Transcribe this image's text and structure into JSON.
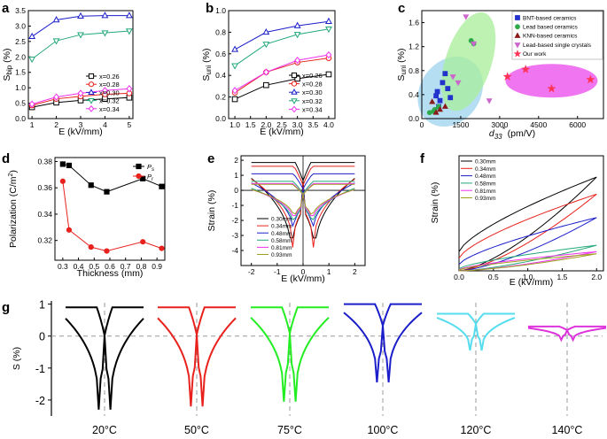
{
  "colors": {
    "black": "#000000",
    "red": "#e8211c",
    "blue": "#1b1ec9",
    "green": "#23a879",
    "magenta": "#ee30ee",
    "cyan": "#55ddee",
    "olive": "#a0a020"
  },
  "panels": {
    "a": "a",
    "b": "b",
    "c": "c",
    "d": "d",
    "e": "e",
    "f": "f",
    "g": "g"
  },
  "chart_data": [
    {
      "id": "a",
      "type": "line",
      "title": "",
      "xlabel": "E (kV/mm)",
      "ylabel": "S_bip (%)",
      "ylabel_main": "S",
      "ylabel_sub": "bip",
      "ylabel_unit": " (%)",
      "xlim": [
        1,
        5
      ],
      "ylim": [
        0,
        3.5
      ],
      "xticks": [
        "1",
        "2",
        "3",
        "4",
        "5"
      ],
      "yticks": [
        "0.0",
        "0.5",
        "1.0",
        "1.5",
        "2.0",
        "2.5",
        "3.0",
        "3.5"
      ],
      "x": [
        1,
        2,
        3,
        4,
        5
      ],
      "series": [
        {
          "name": "x=0.26",
          "color": "#000000",
          "marker": "square",
          "values": [
            0.37,
            0.52,
            0.59,
            0.64,
            0.68
          ]
        },
        {
          "name": "x=0.28",
          "color": "#e8211c",
          "marker": "circle",
          "values": [
            0.43,
            0.64,
            0.72,
            0.79,
            0.82
          ]
        },
        {
          "name": "x=0.30",
          "color": "#1b1ec9",
          "marker": "triangle",
          "values": [
            2.66,
            3.2,
            3.32,
            3.34,
            3.34
          ]
        },
        {
          "name": "x=0.32",
          "color": "#23a879",
          "marker": "triangle-down",
          "values": [
            1.93,
            2.52,
            2.72,
            2.78,
            2.84
          ]
        },
        {
          "name": "x=0.34",
          "color": "#ee30ee",
          "marker": "diamond",
          "values": [
            0.47,
            0.7,
            0.82,
            0.91,
            0.97
          ]
        }
      ]
    },
    {
      "id": "b",
      "type": "line",
      "title": "",
      "xlabel": "E (kV/mm)",
      "ylabel": "S_uni (%)",
      "ylabel_main": "S",
      "ylabel_sub": "uni",
      "ylabel_unit": " (%)",
      "xlim": [
        0.8,
        4.2
      ],
      "ylim": [
        0,
        1.0
      ],
      "xticks": [
        "1.0",
        "1.5",
        "2.0",
        "2.5",
        "3.0",
        "3.5",
        "4.0"
      ],
      "yticks": [
        "0.0",
        "0.2",
        "0.4",
        "0.6",
        "0.8",
        "1.0"
      ],
      "x": [
        1,
        2,
        3,
        4
      ],
      "series": [
        {
          "name": "x=0.26",
          "color": "#000000",
          "marker": "square",
          "values": [
            0.18,
            0.31,
            0.37,
            0.41
          ]
        },
        {
          "name": "x=0.28",
          "color": "#e8211c",
          "marker": "circle",
          "values": [
            0.24,
            0.43,
            0.52,
            0.56
          ]
        },
        {
          "name": "x=0.30",
          "color": "#1b1ec9",
          "marker": "triangle",
          "values": [
            0.64,
            0.8,
            0.86,
            0.9
          ]
        },
        {
          "name": "x=0.32",
          "color": "#23a879",
          "marker": "triangle-down",
          "values": [
            0.49,
            0.69,
            0.78,
            0.83
          ]
        },
        {
          "name": "x=0.34",
          "color": "#ee30ee",
          "marker": "diamond",
          "values": [
            0.26,
            0.43,
            0.54,
            0.59
          ]
        }
      ]
    },
    {
      "id": "c",
      "type": "scatter",
      "title": "",
      "xlabel": "d33* (pm/V)",
      "xlabel_main": "d",
      "xlabel_sub": "33",
      "xlabel_sup": "*",
      "xlabel_unit": " (pm/V)",
      "ylabel": "S_uni (%)",
      "ylabel_main": "S",
      "ylabel_sub": "uni",
      "ylabel_unit": " (%)",
      "xlim": [
        0,
        7000
      ],
      "ylim": [
        0,
        1.8
      ],
      "xticks": [
        "0",
        "1500",
        "3000",
        "4500",
        "6000"
      ],
      "yticks": [
        "0.0",
        "0.4",
        "0.8",
        "1.2",
        "1.6"
      ],
      "series": [
        {
          "name": "BNT-based ceramics",
          "color": "#2233cc",
          "marker": "square",
          "points": [
            [
              550,
              0.38
            ],
            [
              600,
              0.45
            ],
            [
              700,
              0.3
            ],
            [
              800,
              0.6
            ],
            [
              900,
              0.75
            ],
            [
              1000,
              0.5
            ],
            [
              1100,
              0.35
            ],
            [
              650,
              0.2
            ]
          ]
        },
        {
          "name": "Lead based ceramics",
          "color": "#2eaa4a",
          "marker": "circle",
          "points": [
            [
              300,
              0.1
            ],
            [
              450,
              0.12
            ],
            [
              500,
              0.15
            ],
            [
              650,
              0.2
            ],
            [
              1900,
              1.3
            ],
            [
              2000,
              1.25
            ]
          ]
        },
        {
          "name": "KNN-based ceramics",
          "color": "#8b1a1a",
          "marker": "triangle",
          "points": [
            [
              400,
              0.28
            ],
            [
              550,
              0.1
            ],
            [
              700,
              0.15
            ],
            [
              900,
              0.2
            ]
          ]
        },
        {
          "name": "Lead-based single crystals",
          "color": "#cc66cc",
          "marker": "triangle-down",
          "points": [
            [
              1200,
              0.7
            ],
            [
              1400,
              0.6
            ],
            [
              1700,
              1.7
            ],
            [
              2000,
              1.25
            ],
            [
              2600,
              0.3
            ]
          ]
        },
        {
          "name": "Our work",
          "color": "#ff3355",
          "marker": "star",
          "points": [
            [
              3300,
              0.7
            ],
            [
              4000,
              0.82
            ],
            [
              5000,
              0.5
            ],
            [
              6500,
              0.65
            ]
          ]
        }
      ]
    },
    {
      "id": "d",
      "type": "line",
      "title": "",
      "xlabel": "Thickness (mm)",
      "ylabel": "Polarization (C/m2)",
      "ylabel_main": "Polarization (C/m",
      "ylabel_sup": "2",
      "ylabel_unit": ")",
      "xlim": [
        0.25,
        0.95
      ],
      "ylim": [
        0.305,
        0.383
      ],
      "xticks": [
        "0.3",
        "0.4",
        "0.5",
        "0.6",
        "0.7",
        "0.8",
        "0.9"
      ],
      "yticks": [
        "0.32",
        "0.34",
        "0.36",
        "0.38"
      ],
      "x": [
        0.3,
        0.34,
        0.48,
        0.58,
        0.81,
        0.93
      ],
      "series": [
        {
          "name": "Ps",
          "label_main": "P",
          "label_sub": "s",
          "color": "#000000",
          "marker": "square",
          "values": [
            0.378,
            0.377,
            0.362,
            0.357,
            0.367,
            0.361
          ]
        },
        {
          "name": "Pr",
          "label_main": "P",
          "label_sub": "r",
          "color": "#e8211c",
          "marker": "circle",
          "values": [
            0.365,
            0.328,
            0.315,
            0.312,
            0.319,
            0.314
          ]
        }
      ]
    },
    {
      "id": "e",
      "type": "line",
      "title": "",
      "xlabel": "E (kV/mm)",
      "ylabel": "Strain (%)",
      "xlim": [
        -2.4,
        2.4
      ],
      "ylim": [
        -5,
        2.3
      ],
      "xticks": [
        "-2",
        "-1",
        "0",
        "1",
        "2"
      ],
      "yticks": [
        "-4",
        "-3",
        "-2",
        "-1",
        "0",
        "1",
        "2"
      ],
      "series": [
        {
          "name": "0.30mm",
          "color": "#000000",
          "peak": 1.85,
          "min": -4.4,
          "ec": 0.45
        },
        {
          "name": "0.34mm",
          "color": "#e8211c",
          "peak": 1.6,
          "min": -3.8,
          "ec": 0.4
        },
        {
          "name": "0.48mm",
          "color": "#1b1ec9",
          "peak": 1.1,
          "min": -2.9,
          "ec": 0.38
        },
        {
          "name": "0.58mm",
          "color": "#23a879",
          "peak": 0.6,
          "min": -2.5,
          "ec": 0.36
        },
        {
          "name": "0.81mm",
          "color": "#ee30ee",
          "peak": 0.45,
          "min": -2.2,
          "ec": 0.35
        },
        {
          "name": "0.93mm",
          "color": "#a0a020",
          "peak": 0.4,
          "min": -2.0,
          "ec": 0.34
        }
      ]
    },
    {
      "id": "f",
      "type": "line",
      "title": "",
      "xlabel": "E (kV/mm)",
      "ylabel": "Strain (%)",
      "xlim": [
        0,
        2.1
      ],
      "ylim": [
        0,
        2.7
      ],
      "xticks": [
        "0.0",
        "0.5",
        "1.0",
        "1.5",
        "2.0"
      ],
      "yticks": [],
      "series": [
        {
          "name": "0.30mm",
          "color": "#000000",
          "max": 2.2,
          "remanent": 0.45
        },
        {
          "name": "0.34mm",
          "color": "#e8211c",
          "max": 1.8,
          "remanent": 0.3
        },
        {
          "name": "0.48mm",
          "color": "#1b1ec9",
          "max": 1.25,
          "remanent": 0.15
        },
        {
          "name": "0.58mm",
          "color": "#23a879",
          "max": 0.6,
          "remanent": 0.05
        },
        {
          "name": "0.81mm",
          "color": "#ee30ee",
          "max": 0.45,
          "remanent": 0.03
        },
        {
          "name": "0.93mm",
          "color": "#a0a020",
          "max": 0.4,
          "remanent": 0.02
        }
      ]
    },
    {
      "id": "g",
      "type": "line",
      "title": "",
      "ylabel": "S (%)",
      "ylim": [
        -2.5,
        1.1
      ],
      "yticks": [
        "1",
        "0",
        "-1",
        "-2"
      ],
      "series": [
        {
          "name": "20°C",
          "color": "#000000",
          "peak": 0.9,
          "min": -2.3
        },
        {
          "name": "50°C",
          "color": "#e8211c",
          "peak": 0.9,
          "min": -2.2
        },
        {
          "name": "75°C",
          "color": "#22ee22",
          "peak": 0.9,
          "min": -2.05
        },
        {
          "name": "100°C",
          "color": "#1b1ec9",
          "peak": 1.0,
          "min": -1.45
        },
        {
          "name": "120°C",
          "color": "#55ddee",
          "peak": 0.7,
          "min": -0.45
        },
        {
          "name": "140°C",
          "color": "#dd33dd",
          "peak": 0.3,
          "min": -0.12
        }
      ]
    }
  ]
}
